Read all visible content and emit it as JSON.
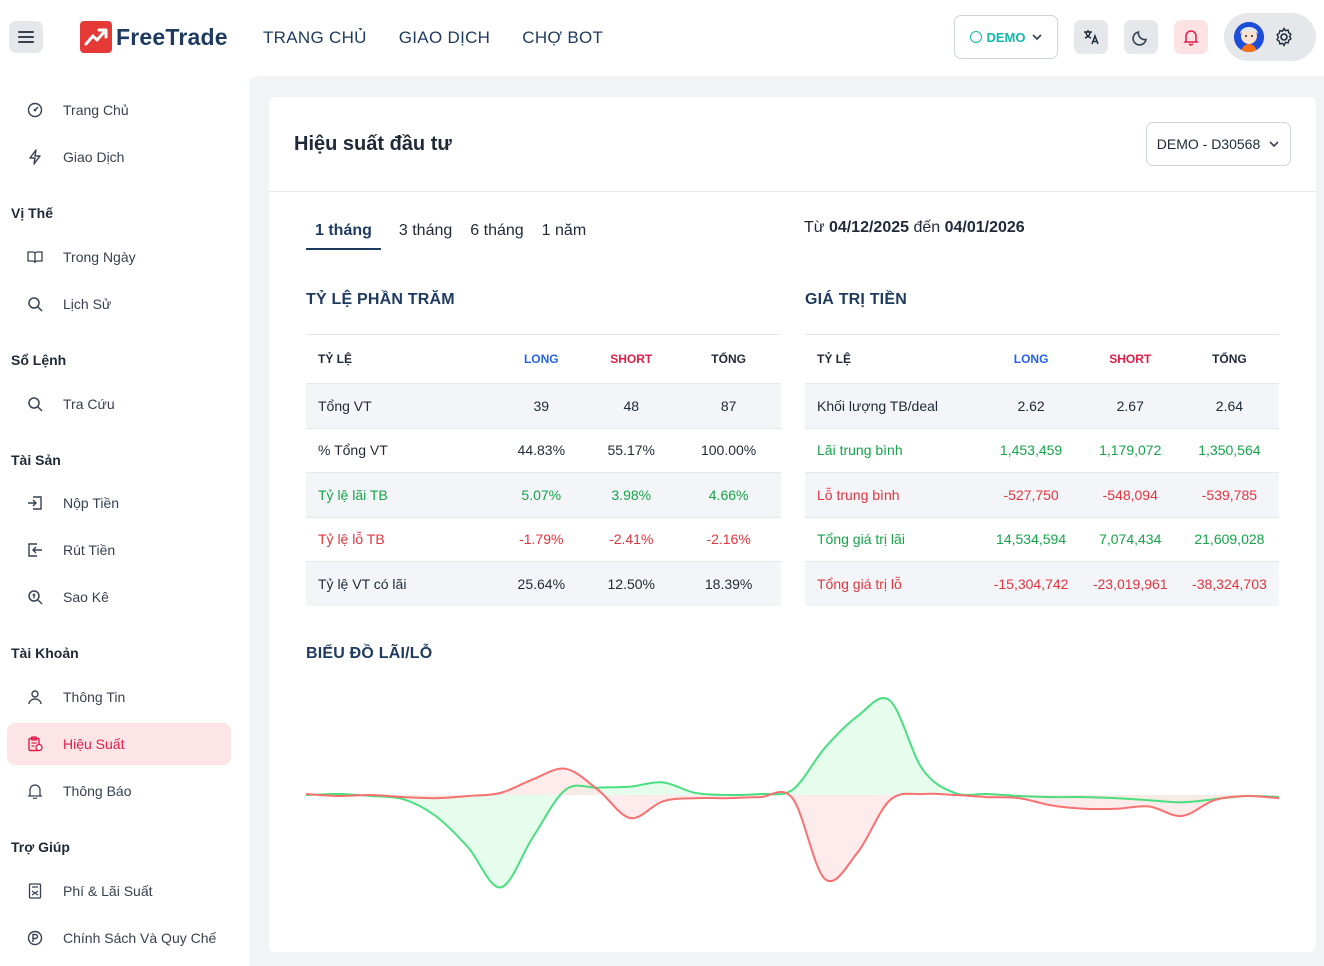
{
  "app": {
    "brand": "FreeTrade",
    "nav": [
      "TRANG CHỦ",
      "GIAO DỊCH",
      "CHỢ BOT"
    ],
    "mode_label": "DEMO"
  },
  "sidebar": {
    "top": [
      {
        "label": "Trang Chủ",
        "icon": "dashboard-icon"
      },
      {
        "label": "Giao Dịch",
        "icon": "lightning-icon"
      }
    ],
    "sections": [
      {
        "title": "Vị Thế",
        "items": [
          {
            "label": "Trong Ngày",
            "icon": "book-icon"
          },
          {
            "label": "Lịch Sử",
            "icon": "search-icon"
          }
        ]
      },
      {
        "title": "Sổ Lệnh",
        "items": [
          {
            "label": "Tra Cứu",
            "icon": "search-icon"
          }
        ]
      },
      {
        "title": "Tài Sản",
        "items": [
          {
            "label": "Nộp Tiền",
            "icon": "deposit-icon"
          },
          {
            "label": "Rút Tiền",
            "icon": "withdraw-icon"
          },
          {
            "label": "Sao Kê",
            "icon": "statement-icon"
          }
        ]
      },
      {
        "title": "Tài Khoản",
        "items": [
          {
            "label": "Thông Tin",
            "icon": "user-icon"
          },
          {
            "label": "Hiệu Suất",
            "icon": "clipboard-icon",
            "active": true
          },
          {
            "label": "Thông Báo",
            "icon": "bell-icon"
          }
        ]
      },
      {
        "title": "Trợ Giúp",
        "items": [
          {
            "label": "Phí & Lãi Suất",
            "icon": "calculator-icon"
          },
          {
            "label": "Chính Sách Và Quy Chế",
            "icon": "policy-icon"
          }
        ]
      }
    ]
  },
  "page": {
    "title": "Hiệu suất đầu tư",
    "account": "DEMO - D30568",
    "tabs": [
      "1 tháng",
      "3 tháng",
      "6 tháng",
      "1 năm"
    ],
    "active_tab": "1 tháng",
    "range_prefix": "Từ",
    "range_from": "04/12/2025",
    "range_mid": "đến",
    "range_to": "04/01/2026"
  },
  "pct_table": {
    "title": "TỶ LỆ PHẦN TRĂM",
    "headers": [
      "TỶ LỆ",
      "LONG",
      "SHORT",
      "TỔNG"
    ],
    "rows": [
      {
        "label": "Tổng VT",
        "long": "39",
        "short": "48",
        "total": "87",
        "tone": "default"
      },
      {
        "label": "% Tổng VT",
        "long": "44.83%",
        "short": "55.17%",
        "total": "100.00%",
        "tone": "default"
      },
      {
        "label": "Tỷ lệ lãi TB",
        "long": "5.07%",
        "short": "3.98%",
        "total": "4.66%",
        "tone": "profit"
      },
      {
        "label": "Tỷ lệ lỗ TB",
        "long": "-1.79%",
        "short": "-2.41%",
        "total": "-2.16%",
        "tone": "loss"
      },
      {
        "label": "Tỷ lệ VT có lãi",
        "long": "25.64%",
        "short": "12.50%",
        "total": "18.39%",
        "tone": "default"
      }
    ]
  },
  "value_table": {
    "title": "GIÁ TRỊ TIỀN",
    "headers": [
      "TỶ LỆ",
      "LONG",
      "SHORT",
      "TỔNG"
    ],
    "rows": [
      {
        "label": "Khối lượng TB/deal",
        "long": "2.62",
        "short": "2.67",
        "total": "2.64",
        "tone": "default"
      },
      {
        "label": "Lãi trung bình",
        "long": "1,453,459",
        "short": "1,179,072",
        "total": "1,350,564",
        "tone": "profit"
      },
      {
        "label": "Lỗ trung bình",
        "long": "-527,750",
        "short": "-548,094",
        "total": "-539,785",
        "tone": "loss"
      },
      {
        "label": "Tổng giá trị lãi",
        "long": "14,534,594",
        "short": "7,074,434",
        "total": "21,609,028",
        "tone": "profit"
      },
      {
        "label": "Tổng giá trị lỗ",
        "long": "-15,304,742",
        "short": "-23,019,961",
        "total": "-38,324,703",
        "tone": "loss"
      }
    ]
  },
  "chart_title": "BIỂU ĐỒ LÃI/LỖ",
  "colors": {
    "profit": "#16a34a",
    "loss": "#e0353f",
    "long_header": "#2563eb",
    "short_header": "#e11d48",
    "brand_navy": "#1e3a5f"
  },
  "chart_data": {
    "type": "area",
    "series": [
      {
        "color": "#4ade80",
        "values": [
          0,
          1,
          -1,
          -4,
          -20,
          -50,
          -88,
          -40,
          5,
          7,
          8,
          12,
          2,
          0,
          1,
          5,
          45,
          75,
          90,
          25,
          2,
          1,
          -1,
          -2,
          -2,
          -3,
          -5,
          -7,
          -4,
          -1,
          -2
        ]
      },
      {
        "color": "#f87171",
        "values": [
          1,
          -1,
          0,
          -2,
          -3,
          -1,
          2,
          15,
          25,
          5,
          -22,
          -6,
          -3,
          -3,
          -2,
          -3,
          -80,
          -55,
          -5,
          1,
          0,
          -2,
          -3,
          -10,
          -13,
          -13,
          -11,
          -20,
          -5,
          -1,
          -3
        ]
      }
    ]
  }
}
